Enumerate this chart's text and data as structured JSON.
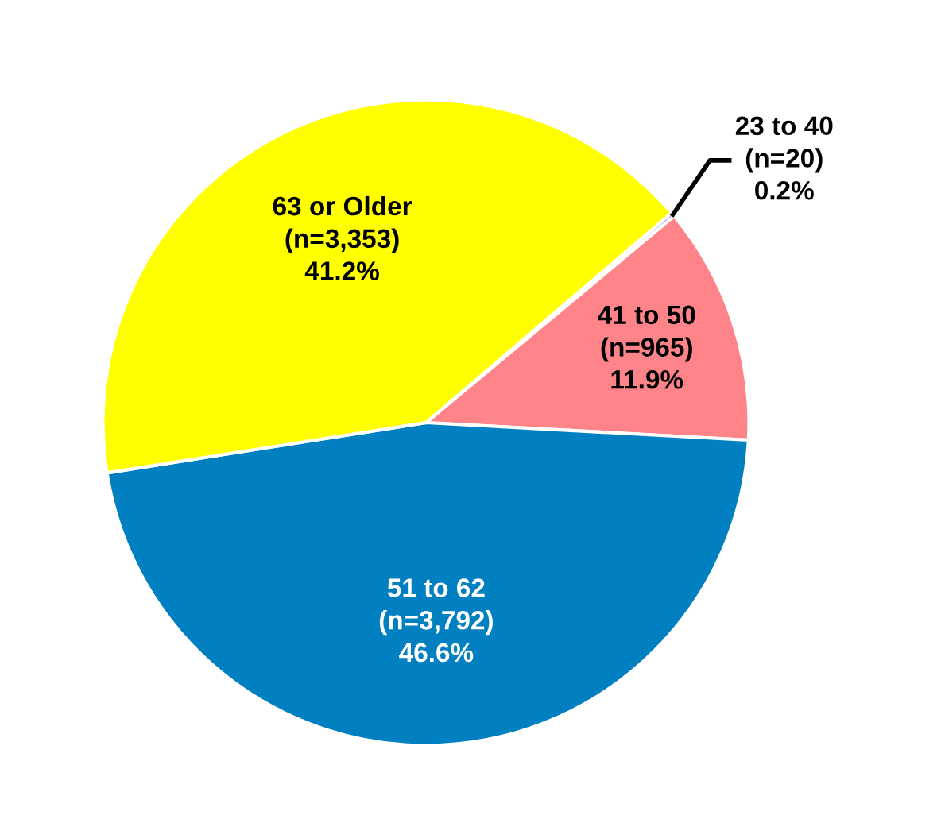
{
  "chart_data": {
    "type": "pie",
    "categories": [
      "23 to 40",
      "41 to 50",
      "51 to 62",
      "63 or Older"
    ],
    "values": [
      0.2,
      11.9,
      46.6,
      41.2
    ],
    "value_labels": [
      "(n=20)\n0.2%",
      "(n=965)\n11.9%",
      "(n=3,792)\n46.6%",
      "(n=3,353)\n41.2%"
    ],
    "colors": [
      "#8a2be2",
      "#ff8489",
      "#0080c0",
      "#ffff00"
    ],
    "legend": false
  }
}
